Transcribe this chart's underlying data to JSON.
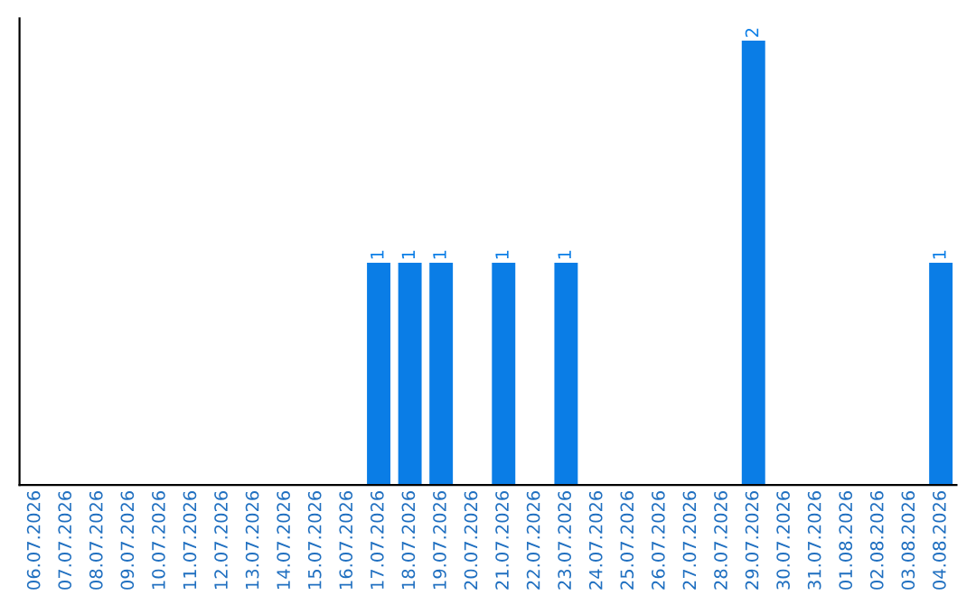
{
  "chart_data": {
    "type": "bar",
    "categories": [
      "06.07.2026",
      "07.07.2026",
      "08.07.2026",
      "09.07.2026",
      "10.07.2026",
      "11.07.2026",
      "12.07.2026",
      "13.07.2026",
      "14.07.2026",
      "15.07.2026",
      "16.07.2026",
      "17.07.2026",
      "18.07.2026",
      "19.07.2026",
      "20.07.2026",
      "21.07.2026",
      "22.07.2026",
      "23.07.2026",
      "24.07.2026",
      "25.07.2026",
      "26.07.2026",
      "27.07.2026",
      "28.07.2026",
      "29.07.2026",
      "30.07.2026",
      "31.07.2026",
      "01.08.2026",
      "02.08.2026",
      "03.08.2026",
      "04.08.2026"
    ],
    "values": [
      0,
      0,
      0,
      0,
      0,
      0,
      0,
      0,
      0,
      0,
      0,
      1,
      1,
      1,
      0,
      1,
      0,
      1,
      0,
      0,
      0,
      0,
      0,
      2,
      0,
      0,
      0,
      0,
      0,
      1
    ],
    "color": "#0a7de6",
    "value_labels": [
      null,
      null,
      null,
      null,
      null,
      null,
      null,
      null,
      null,
      null,
      null,
      "1",
      "1",
      "1",
      null,
      "1",
      null,
      "1",
      null,
      null,
      null,
      null,
      null,
      "2",
      null,
      null,
      null,
      null,
      null,
      "1"
    ],
    "tick_labels": "x",
    "grid": false,
    "legend": false
  }
}
